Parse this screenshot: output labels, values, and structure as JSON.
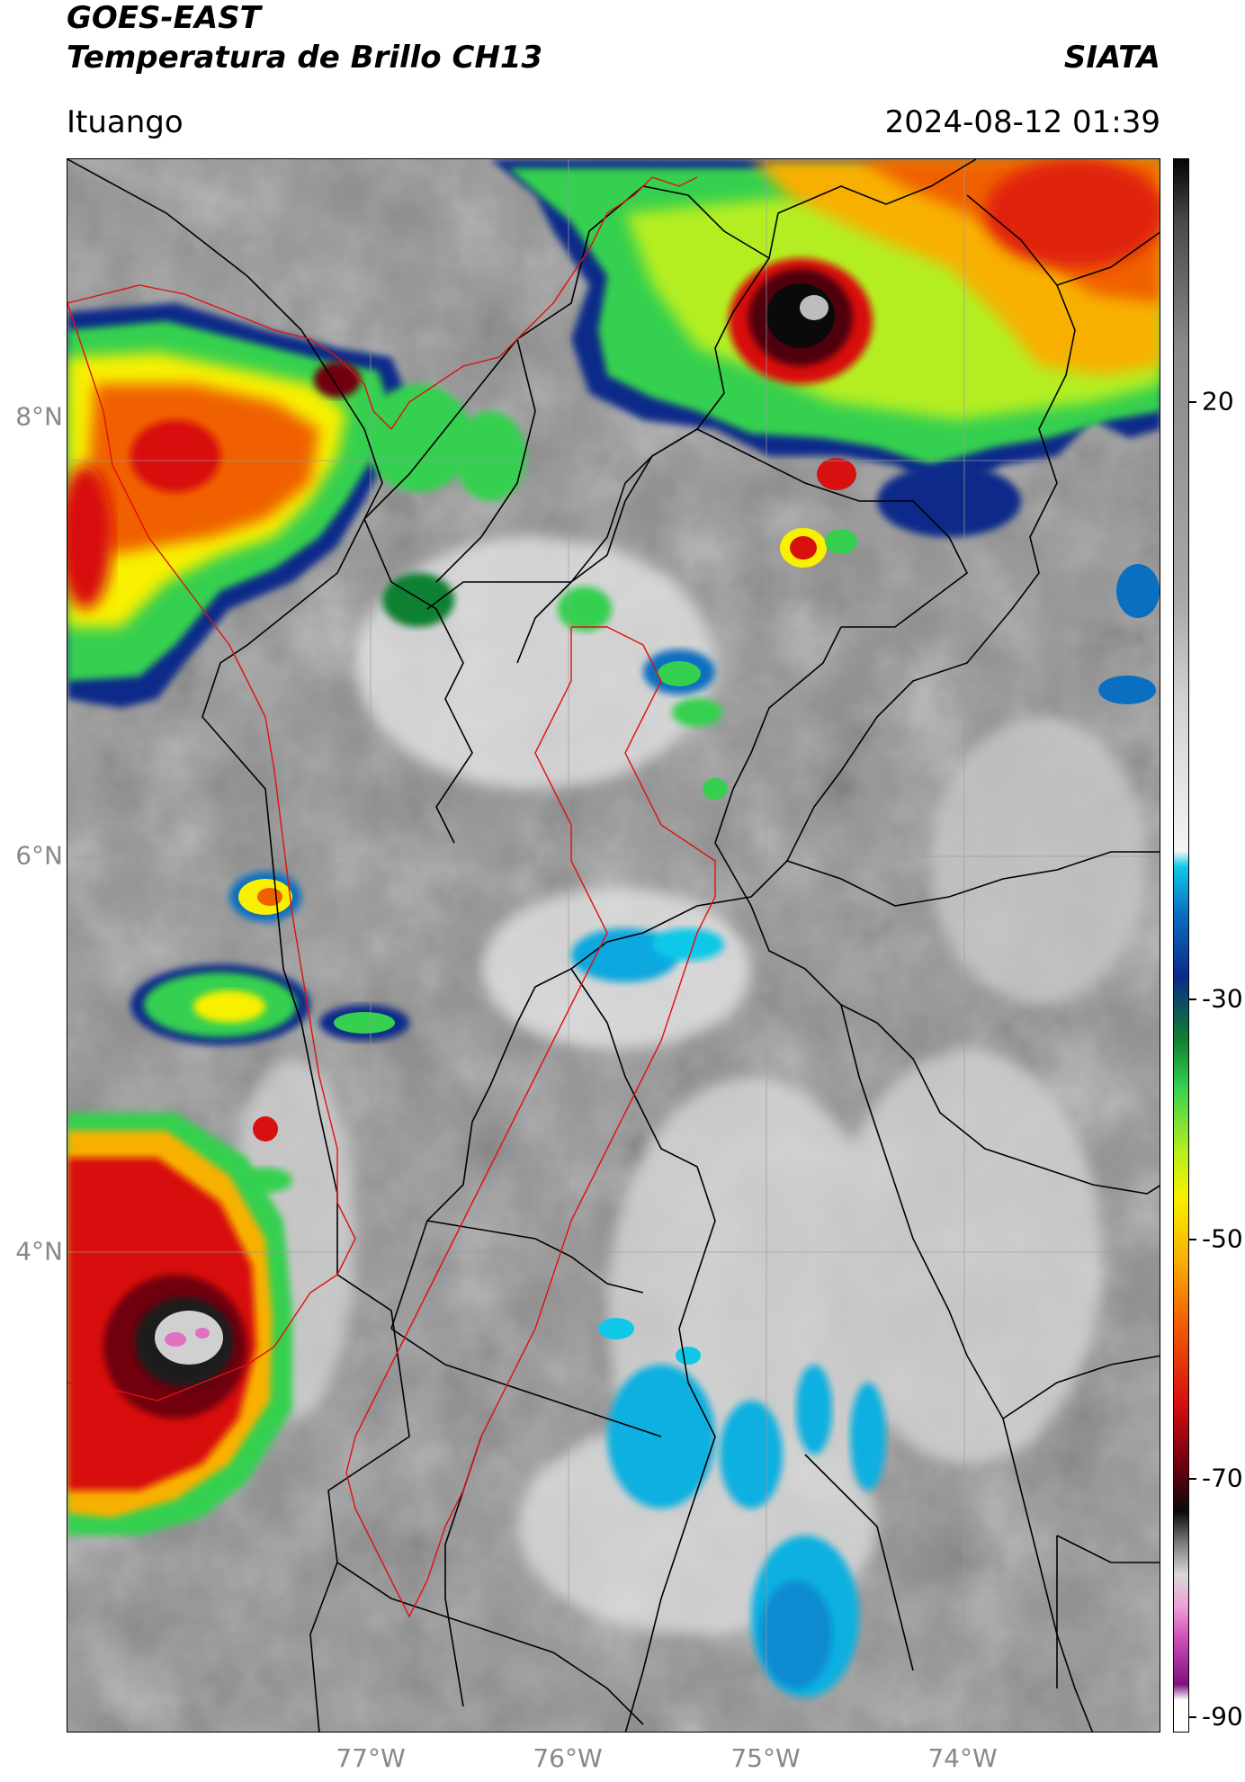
{
  "header": {
    "title_line1": "GOES-EAST",
    "title_line2": "Temperatura de Brillo CH13",
    "organization": "SIATA",
    "region": "Ituango",
    "timestamp": "2024-08-12 01:39"
  },
  "map": {
    "lat_labels": [
      "8°N",
      "6°N",
      "4°N"
    ],
    "lon_labels": [
      "77°W",
      "76°W",
      "75°W",
      "74°W"
    ],
    "border_colors": {
      "country": "#000000",
      "basin": "#e01010"
    }
  },
  "colorbar": {
    "tick_labels": [
      "20",
      "-30",
      "-50",
      "-70",
      "-90"
    ]
  }
}
